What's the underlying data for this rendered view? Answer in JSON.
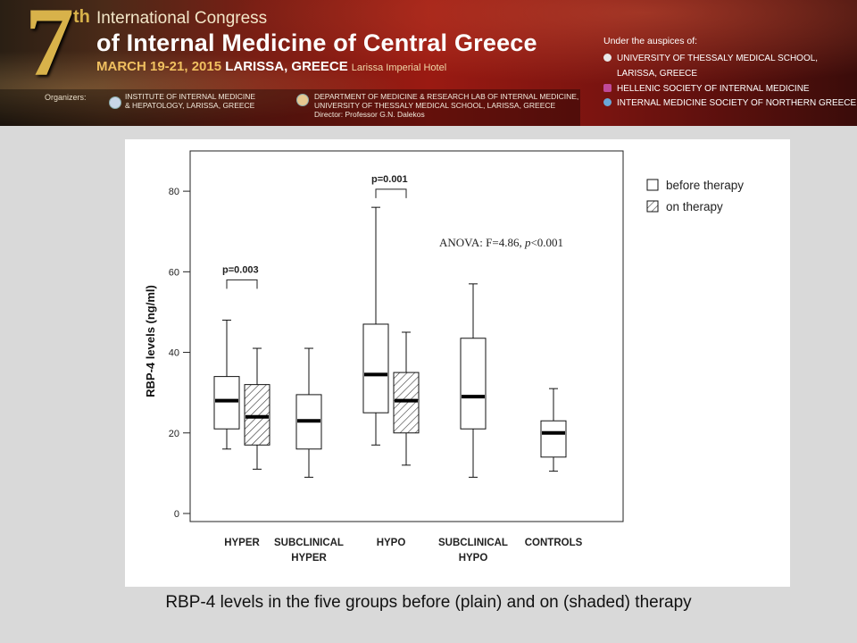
{
  "banner": {
    "big_number": "7",
    "ordinal": "th",
    "congress": "International Congress",
    "title": "of Internal Medicine of Central Greece",
    "date": "MARCH 19-21, 2015",
    "location": "LARISSA, GREECE",
    "hotel": "Larissa Imperial Hotel",
    "organizers_label": "Organizers:",
    "organizers": [
      {
        "line1": "INSTITUTE OF INTERNAL MEDICINE",
        "line2": "& HEPATOLOGY, LARISSA, GREECE",
        "line3": ""
      },
      {
        "line1": "DEPARTMENT OF MEDICINE & RESEARCH LAB OF INTERNAL MEDICINE,",
        "line2": "UNIVERSITY OF THESSALY MEDICAL SCHOOL, LARISSA, GREECE",
        "line3": "Director: Professor G.N. Dalekos"
      }
    ],
    "auspices_label": "Under the auspices of:",
    "auspices": [
      {
        "text": "UNIVERSITY OF THESSALY MEDICAL SCHOOL,",
        "color": "#e8e8e8"
      },
      {
        "text": "LARISSA, GREECE",
        "color": ""
      },
      {
        "text": "HELLENIC SOCIETY OF INTERNAL MEDICINE",
        "color": "#c04a9a"
      },
      {
        "text": "INTERNAL MEDICINE SOCIETY OF NORTHERN GREECE",
        "color": "#6aa8d8"
      }
    ]
  },
  "chart_data": {
    "type": "boxplot",
    "ylabel": "RBP-4 levels (ng/ml)",
    "ylim": [
      -2,
      90
    ],
    "yticks": [
      0,
      20,
      40,
      60,
      80
    ],
    "categories": [
      {
        "line1": "HYPER",
        "line2": ""
      },
      {
        "line1": "SUBCLINICAL",
        "line2": "HYPER"
      },
      {
        "line1": "HYPO",
        "line2": ""
      },
      {
        "line1": "SUBCLINICAL",
        "line2": "HYPO"
      },
      {
        "line1": "CONTROLS",
        "line2": ""
      }
    ],
    "series": [
      {
        "name": "before therapy",
        "fill": "plain"
      },
      {
        "name": "on therapy",
        "fill": "hatched"
      }
    ],
    "boxes": [
      {
        "category": 0,
        "series": 0,
        "min": 16,
        "q1": 21,
        "median": 28,
        "q3": 34,
        "max": 48
      },
      {
        "category": 0,
        "series": 1,
        "min": 11,
        "q1": 17,
        "median": 24,
        "q3": 32,
        "max": 41
      },
      {
        "category": 1,
        "series": 0,
        "min": 9,
        "q1": 16,
        "median": 23,
        "q3": 29.5,
        "max": 41
      },
      {
        "category": 2,
        "series": 0,
        "min": 17,
        "q1": 25,
        "median": 34.5,
        "q3": 47,
        "max": 76
      },
      {
        "category": 2,
        "series": 1,
        "min": 12,
        "q1": 20,
        "median": 28,
        "q3": 35,
        "max": 45
      },
      {
        "category": 3,
        "series": 0,
        "min": 9,
        "q1": 21,
        "median": 29,
        "q3": 43.5,
        "max": 57
      },
      {
        "category": 4,
        "series": 0,
        "min": 10.5,
        "q1": 14,
        "median": 20,
        "q3": 23,
        "max": 31
      }
    ],
    "annotations": [
      {
        "text": "p=0.003",
        "category": 0,
        "y": 58
      },
      {
        "text": "p=0.001",
        "category": 2,
        "y": 80.5
      },
      {
        "text": "ANOVA: F=4.86, p<0.001",
        "prefix": "ANOVA: F=4.86, ",
        "italic": "p",
        "suffix": "<0.001"
      }
    ],
    "legend": "right",
    "grid": false
  },
  "caption": "RBP-4 levels in the five groups before (plain) and on (shaded) therapy"
}
